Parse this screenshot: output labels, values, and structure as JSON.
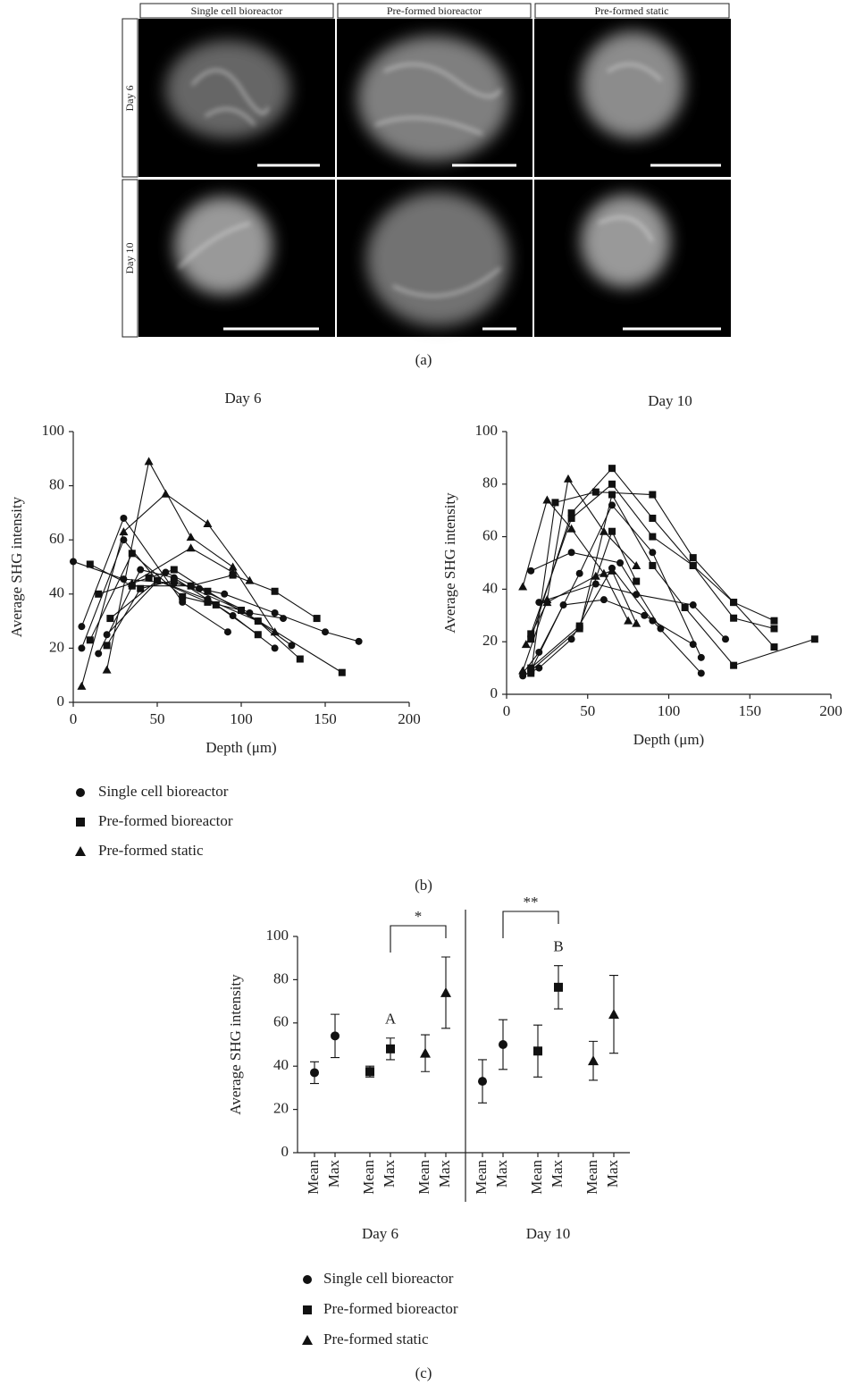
{
  "figure": {
    "panel_a": {
      "label": "(a)",
      "columns": [
        "Single cell bioreactor",
        "Pre-formed bioreactor",
        "Pre-formed static"
      ],
      "rows": [
        "Day 6",
        "Day 10"
      ]
    },
    "panel_b": {
      "label": "(b)",
      "legend": [
        {
          "name": "Single cell bioreactor",
          "marker": "circle"
        },
        {
          "name": "Pre-formed bioreactor",
          "marker": "square"
        },
        {
          "name": "Pre-formed static",
          "marker": "triangle"
        }
      ]
    },
    "panel_c": {
      "label": "(c)"
    }
  },
  "chart_data": [
    {
      "type": "line",
      "title": "Day 6",
      "x_label": "Depth (μm)",
      "y_label": "Average SHG intensity",
      "xlim": [
        0,
        200
      ],
      "xticks": [
        0,
        50,
        100,
        150,
        200
      ],
      "ylim": [
        0,
        100
      ],
      "yticks": [
        0,
        20,
        40,
        60,
        80,
        100
      ],
      "series": [
        {
          "marker": "circle",
          "x": [
            0,
            30,
            60,
            90,
            120,
            150,
            170
          ],
          "values": [
            52,
            45.5,
            44,
            40,
            33,
            26,
            22.5
          ]
        },
        {
          "marker": "circle",
          "x": [
            5,
            30,
            65,
            92
          ],
          "values": [
            28,
            68,
            37,
            26
          ]
        },
        {
          "marker": "circle",
          "x": [
            5,
            30,
            50,
            80,
            110,
            130
          ],
          "values": [
            20,
            60,
            45,
            38,
            30,
            21
          ]
        },
        {
          "marker": "circle",
          "x": [
            15,
            40,
            60,
            95,
            120
          ],
          "values": [
            18,
            49,
            46,
            32,
            20
          ]
        },
        {
          "marker": "circle",
          "x": [
            20,
            55,
            75,
            105,
            125
          ],
          "values": [
            25,
            48,
            42,
            33,
            31
          ]
        },
        {
          "marker": "square",
          "x": [
            10,
            35,
            70,
            95,
            120,
            145
          ],
          "values": [
            51,
            43,
            43,
            47,
            41,
            31
          ]
        },
        {
          "marker": "square",
          "x": [
            10,
            35,
            65,
            85,
            110
          ],
          "values": [
            23,
            55,
            39,
            36,
            25
          ]
        },
        {
          "marker": "square",
          "x": [
            15,
            45,
            60,
            80,
            110,
            135
          ],
          "values": [
            40,
            46,
            49,
            41,
            30,
            16
          ]
        },
        {
          "marker": "square",
          "x": [
            20,
            40,
            60,
            100,
            160
          ],
          "values": [
            21,
            42,
            45,
            34,
            11
          ]
        },
        {
          "marker": "square",
          "x": [
            22,
            50,
            80,
            100
          ],
          "values": [
            31,
            45,
            37,
            34
          ]
        },
        {
          "marker": "triangle",
          "x": [
            5,
            30,
            55,
            80,
            105
          ],
          "values": [
            6,
            63,
            77,
            66,
            45
          ]
        },
        {
          "marker": "triangle",
          "x": [
            20,
            45,
            70,
            95,
            120
          ],
          "values": [
            12,
            89,
            61,
            50,
            26
          ]
        },
        {
          "marker": "triangle",
          "x": [
            35,
            70,
            95
          ],
          "values": [
            44,
            57,
            48
          ]
        }
      ]
    },
    {
      "type": "line",
      "title": "Day 10",
      "x_label": "Depth (μm)",
      "y_label": "Average SHG intensity",
      "xlim": [
        0,
        200
      ],
      "xticks": [
        0,
        50,
        100,
        150,
        200
      ],
      "ylim": [
        0,
        100
      ],
      "yticks": [
        0,
        20,
        40,
        60,
        80,
        100
      ],
      "series": [
        {
          "marker": "circle",
          "x": [
            10,
            20,
            40,
            65,
            90,
            120
          ],
          "values": [
            7,
            10,
            21,
            48,
            28,
            8
          ]
        },
        {
          "marker": "circle",
          "x": [
            10,
            20,
            45,
            65,
            90,
            120
          ],
          "values": [
            8,
            16,
            46,
            72,
            54,
            14
          ]
        },
        {
          "marker": "circle",
          "x": [
            15,
            40,
            70,
            95
          ],
          "values": [
            47,
            54,
            50,
            25
          ]
        },
        {
          "marker": "circle",
          "x": [
            20,
            55,
            80,
            115,
            135
          ],
          "values": [
            35,
            42,
            38,
            34,
            21
          ]
        },
        {
          "marker": "circle",
          "x": [
            15,
            35,
            60,
            85,
            115
          ],
          "values": [
            9,
            34,
            36,
            30,
            19
          ]
        },
        {
          "marker": "square",
          "x": [
            15,
            30,
            55,
            90,
            115,
            140,
            165
          ],
          "values": [
            8,
            73,
            77,
            76,
            52,
            35,
            28
          ]
        },
        {
          "marker": "square",
          "x": [
            15,
            40,
            65,
            90,
            115,
            140,
            165
          ],
          "values": [
            21,
            69,
            86,
            67,
            49,
            29,
            25
          ]
        },
        {
          "marker": "square",
          "x": [
            15,
            40,
            65,
            90,
            115,
            140,
            165
          ],
          "values": [
            23,
            67,
            80,
            60,
            49,
            35,
            18
          ]
        },
        {
          "marker": "square",
          "x": [
            15,
            45,
            65,
            90,
            110,
            140,
            190
          ],
          "values": [
            9,
            25,
            76,
            49,
            33,
            11,
            21
          ]
        },
        {
          "marker": "square",
          "x": [
            15,
            45,
            65,
            80
          ],
          "values": [
            10,
            26,
            62,
            43
          ]
        },
        {
          "marker": "triangle",
          "x": [
            10,
            25,
            40,
            60,
            75
          ],
          "values": [
            41,
            74,
            63,
            46,
            28
          ]
        },
        {
          "marker": "triangle",
          "x": [
            10,
            25,
            38,
            60,
            80
          ],
          "values": [
            9,
            36,
            82,
            62,
            49
          ]
        },
        {
          "marker": "triangle",
          "x": [
            12,
            25,
            55,
            65,
            80
          ],
          "values": [
            19,
            35,
            45,
            47,
            27
          ]
        }
      ]
    },
    {
      "type": "errorbar",
      "y_label": "Average SHG intensity",
      "categories": [
        "Mean",
        "Max",
        "Mean",
        "Max",
        "Mean",
        "Max",
        "Mean",
        "Max",
        "Mean",
        "Max",
        "Mean",
        "Max"
      ],
      "groups": [
        {
          "label": "Day 6",
          "size": 6
        },
        {
          "label": "Day 10",
          "size": 6
        }
      ],
      "ylim": [
        0,
        100
      ],
      "yticks": [
        0,
        20,
        40,
        60,
        80,
        100
      ],
      "series": [
        {
          "name": "Single cell bioreactor",
          "marker": "circle",
          "values": [
            37,
            54,
            null,
            null,
            null,
            null,
            33,
            50,
            null,
            null,
            null,
            null
          ],
          "errors": [
            5,
            10,
            null,
            null,
            null,
            null,
            10,
            11.5,
            null,
            null,
            null,
            null
          ]
        },
        {
          "name": "Pre-formed bioreactor",
          "marker": "square",
          "values": [
            null,
            null,
            37.5,
            48,
            null,
            null,
            null,
            null,
            47,
            76.5,
            null,
            null
          ],
          "errors": [
            null,
            null,
            2.5,
            5,
            null,
            null,
            null,
            null,
            12,
            10,
            null,
            null
          ]
        },
        {
          "name": "Pre-formed static",
          "marker": "triangle",
          "values": [
            null,
            null,
            null,
            null,
            46,
            74,
            null,
            null,
            null,
            null,
            42.5,
            64
          ],
          "errors": [
            null,
            null,
            null,
            null,
            8.5,
            16.5,
            null,
            null,
            null,
            null,
            9,
            18
          ]
        }
      ],
      "brackets": [
        {
          "label": "*",
          "from": 3,
          "to": 5
        },
        {
          "label": "**",
          "from": 7,
          "to": 9
        }
      ],
      "letters": [
        {
          "label": "A",
          "at": 3
        },
        {
          "label": "B",
          "at": 9
        }
      ]
    }
  ]
}
